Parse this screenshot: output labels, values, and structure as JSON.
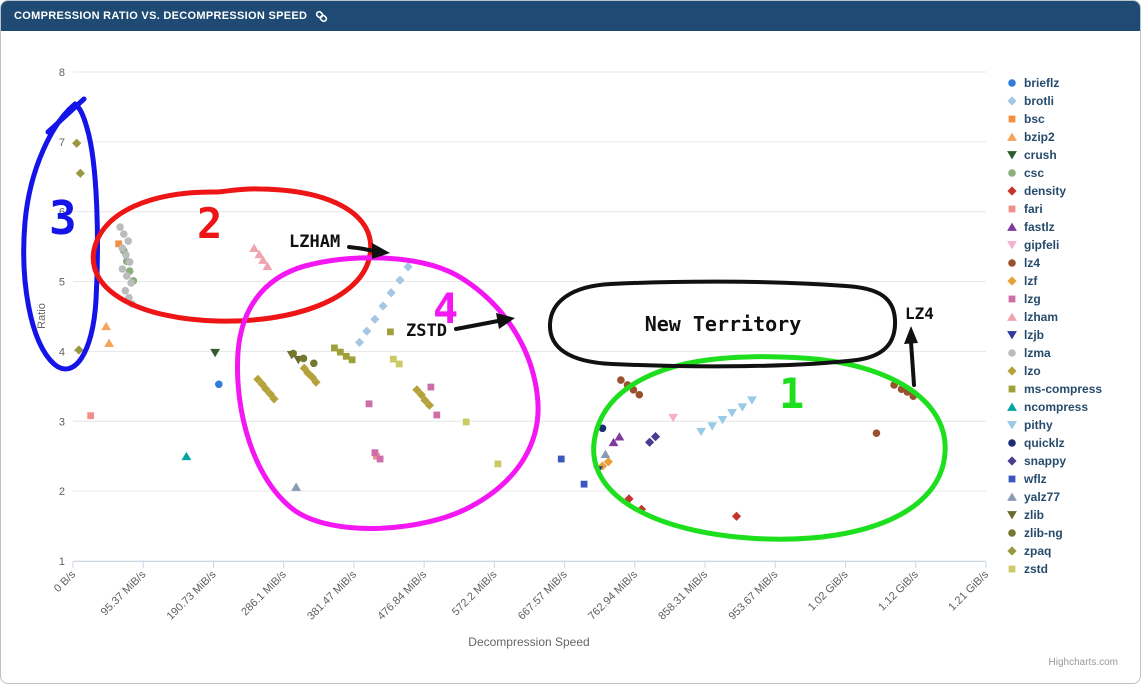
{
  "header": {
    "title": "COMPRESSION RATIO VS. DECOMPRESSION SPEED"
  },
  "chart_data": {
    "type": "scatter",
    "title": "Compression Ratio vs. Decompression Speed",
    "xlabel": "Decompression Speed",
    "ylabel": "Ratio",
    "x_tick_labels": [
      "0 B/s",
      "95.37 MiB/s",
      "190.73 MiB/s",
      "286.1 MiB/s",
      "381.47 MiB/s",
      "476.84 MiB/s",
      "572.2 MiB/s",
      "667.57 MiB/s",
      "762.94 MiB/s",
      "858.31 MiB/s",
      "953.67 MiB/s",
      "1.02 GiB/s",
      "1.12 GiB/s",
      "1.21 GiB/s"
    ],
    "y_ticks": [
      1,
      2,
      3,
      4,
      5,
      6,
      7,
      8
    ],
    "ylim": [
      1,
      8
    ],
    "x_unit_note": "speed values in MiB/s",
    "grid": "horizontal",
    "legend_position": "right",
    "series": [
      {
        "name": "brieflz",
        "color": "#2f7ed8",
        "marker": "circle",
        "points": [
          [
            198,
            3.53
          ]
        ]
      },
      {
        "name": "brotli",
        "color": "#a6c7e3",
        "marker": "diamond",
        "points": [
          [
            389,
            4.13
          ],
          [
            399,
            4.29
          ],
          [
            410,
            4.46
          ],
          [
            421,
            4.65
          ],
          [
            432,
            4.84
          ],
          [
            444,
            5.02
          ],
          [
            455,
            5.21
          ]
        ]
      },
      {
        "name": "bsc",
        "color": "#f28f43",
        "marker": "square",
        "points": [
          [
            62,
            5.54
          ]
        ]
      },
      {
        "name": "bzip2",
        "color": "#f7a35c",
        "marker": "triangle",
        "points": [
          [
            45,
            4.36
          ],
          [
            49,
            4.12
          ]
        ]
      },
      {
        "name": "crush",
        "color": "#2e5d2e",
        "marker": "triangle-down",
        "points": [
          [
            193,
            3.98
          ]
        ]
      },
      {
        "name": "csc",
        "color": "#8cae7e",
        "marker": "circle",
        "points": [
          [
            69,
            5.44
          ],
          [
            73,
            5.29
          ],
          [
            77,
            5.15
          ],
          [
            82,
            5.01
          ]
        ]
      },
      {
        "name": "density",
        "color": "#c4342d",
        "marker": "diamond",
        "points": [
          [
            755,
            1.89
          ],
          [
            772,
            1.74
          ],
          [
            901,
            1.64
          ]
        ]
      },
      {
        "name": "fari",
        "color": "#f19088",
        "marker": "square",
        "points": [
          [
            24,
            3.08
          ],
          [
            412,
            2.5
          ]
        ]
      },
      {
        "name": "fastlz",
        "color": "#80399f",
        "marker": "triangle",
        "points": [
          [
            734,
            2.7
          ],
          [
            742,
            2.78
          ]
        ]
      },
      {
        "name": "gipfeli",
        "color": "#f2b2cd",
        "marker": "triangle-down",
        "points": [
          [
            815,
            3.05
          ]
        ]
      },
      {
        "name": "lz4",
        "color": "#9a512e",
        "marker": "circle",
        "points": [
          [
            744,
            3.59
          ],
          [
            753,
            3.52
          ],
          [
            761,
            3.45
          ],
          [
            769,
            3.38
          ],
          [
            1091,
            2.83
          ],
          [
            1115,
            3.52
          ],
          [
            1125,
            3.46
          ],
          [
            1133,
            3.42
          ],
          [
            1141,
            3.36
          ]
        ]
      },
      {
        "name": "lzf",
        "color": "#e8a13a",
        "marker": "diamond",
        "points": [
          [
            719,
            2.36
          ],
          [
            727,
            2.42
          ]
        ]
      },
      {
        "name": "lzg",
        "color": "#cf6da8",
        "marker": "square",
        "points": [
          [
            402,
            3.25
          ],
          [
            410,
            2.55
          ],
          [
            417,
            2.46
          ],
          [
            486,
            3.49
          ],
          [
            494,
            3.09
          ]
        ]
      },
      {
        "name": "lzham",
        "color": "#f2a3b0",
        "marker": "triangle",
        "points": [
          [
            246,
            5.48
          ],
          [
            253,
            5.39
          ],
          [
            258,
            5.31
          ],
          [
            264,
            5.22
          ]
        ]
      },
      {
        "name": "lzjb",
        "color": "#2b3a9b",
        "marker": "triangle-down",
        "points": [
          [
            713,
            2.3
          ]
        ]
      },
      {
        "name": "lzma",
        "color": "#bcbcbc",
        "marker": "circle",
        "points": [
          [
            64,
            5.78
          ],
          [
            69,
            5.68
          ],
          [
            75,
            5.58
          ],
          [
            67,
            5.48
          ],
          [
            72,
            5.38
          ],
          [
            77,
            5.28
          ],
          [
            67,
            5.18
          ],
          [
            73,
            5.08
          ],
          [
            79,
            4.98
          ],
          [
            71,
            4.87
          ],
          [
            76,
            4.77
          ],
          [
            80,
            4.68
          ]
        ]
      },
      {
        "name": "lzo",
        "color": "#b5a23c",
        "marker": "diamond",
        "points": [
          [
            251,
            3.6
          ],
          [
            257,
            3.53
          ],
          [
            262,
            3.46
          ],
          [
            268,
            3.39
          ],
          [
            273,
            3.32
          ],
          [
            314,
            3.76
          ],
          [
            319,
            3.69
          ],
          [
            325,
            3.63
          ],
          [
            330,
            3.56
          ],
          [
            467,
            3.45
          ],
          [
            473,
            3.38
          ],
          [
            478,
            3.3
          ],
          [
            484,
            3.23
          ]
        ]
      },
      {
        "name": "ms-compress",
        "color": "#a0a03a",
        "marker": "square",
        "points": [
          [
            355,
            4.05
          ],
          [
            363,
            3.99
          ],
          [
            371,
            3.93
          ],
          [
            379,
            3.88
          ],
          [
            431,
            4.28
          ]
        ]
      },
      {
        "name": "ncompress",
        "color": "#00a5a0",
        "marker": "triangle",
        "points": [
          [
            154,
            2.5
          ]
        ]
      },
      {
        "name": "pithy",
        "color": "#97cbe8",
        "marker": "triangle-down",
        "points": [
          [
            853,
            2.85
          ],
          [
            868,
            2.93
          ],
          [
            882,
            3.02
          ],
          [
            895,
            3.12
          ],
          [
            909,
            3.2
          ],
          [
            922,
            3.3
          ]
        ]
      },
      {
        "name": "quicklz",
        "color": "#1e2e74",
        "marker": "circle",
        "points": [
          [
            719,
            2.9
          ]
        ]
      },
      {
        "name": "snappy",
        "color": "#4a3d8f",
        "marker": "diamond",
        "points": [
          [
            783,
            2.7
          ],
          [
            791,
            2.78
          ]
        ]
      },
      {
        "name": "wflz",
        "color": "#3c56c0",
        "marker": "square",
        "points": [
          [
            663,
            2.46
          ],
          [
            694,
            2.1
          ]
        ]
      },
      {
        "name": "yalz77",
        "color": "#8b9ab4",
        "marker": "triangle",
        "points": [
          [
            303,
            2.06
          ],
          [
            723,
            2.53
          ]
        ]
      },
      {
        "name": "zlib",
        "color": "#6a6a30",
        "marker": "triangle-down",
        "points": [
          [
            297,
            3.95
          ],
          [
            306,
            3.88
          ]
        ]
      },
      {
        "name": "zlib-ng",
        "color": "#74772c",
        "marker": "circle",
        "points": [
          [
            299,
            3.97
          ],
          [
            313,
            3.9
          ],
          [
            327,
            3.83
          ]
        ]
      },
      {
        "name": "zpaq",
        "color": "#98983e",
        "marker": "diamond",
        "points": [
          [
            5,
            6.98
          ],
          [
            10,
            6.55
          ],
          [
            8,
            4.02
          ]
        ]
      },
      {
        "name": "zstd",
        "color": "#cbcb66",
        "marker": "square",
        "points": [
          [
            435,
            3.89
          ],
          [
            443,
            3.82
          ],
          [
            534,
            2.99
          ],
          [
            577,
            2.39
          ]
        ]
      }
    ]
  },
  "annotations": {
    "regions": [
      {
        "label": "1",
        "color": "#1ddf1d"
      },
      {
        "label": "2",
        "color": "#ed1515"
      },
      {
        "label": "3",
        "color": "#1414e8"
      },
      {
        "label": "4",
        "color": "#f318f3"
      }
    ],
    "callouts": {
      "lzham": "LZHAM",
      "zstd": "ZSTD",
      "lz4": "LZ4",
      "new_territory": "New Territory"
    }
  },
  "credit": "Highcharts.com"
}
